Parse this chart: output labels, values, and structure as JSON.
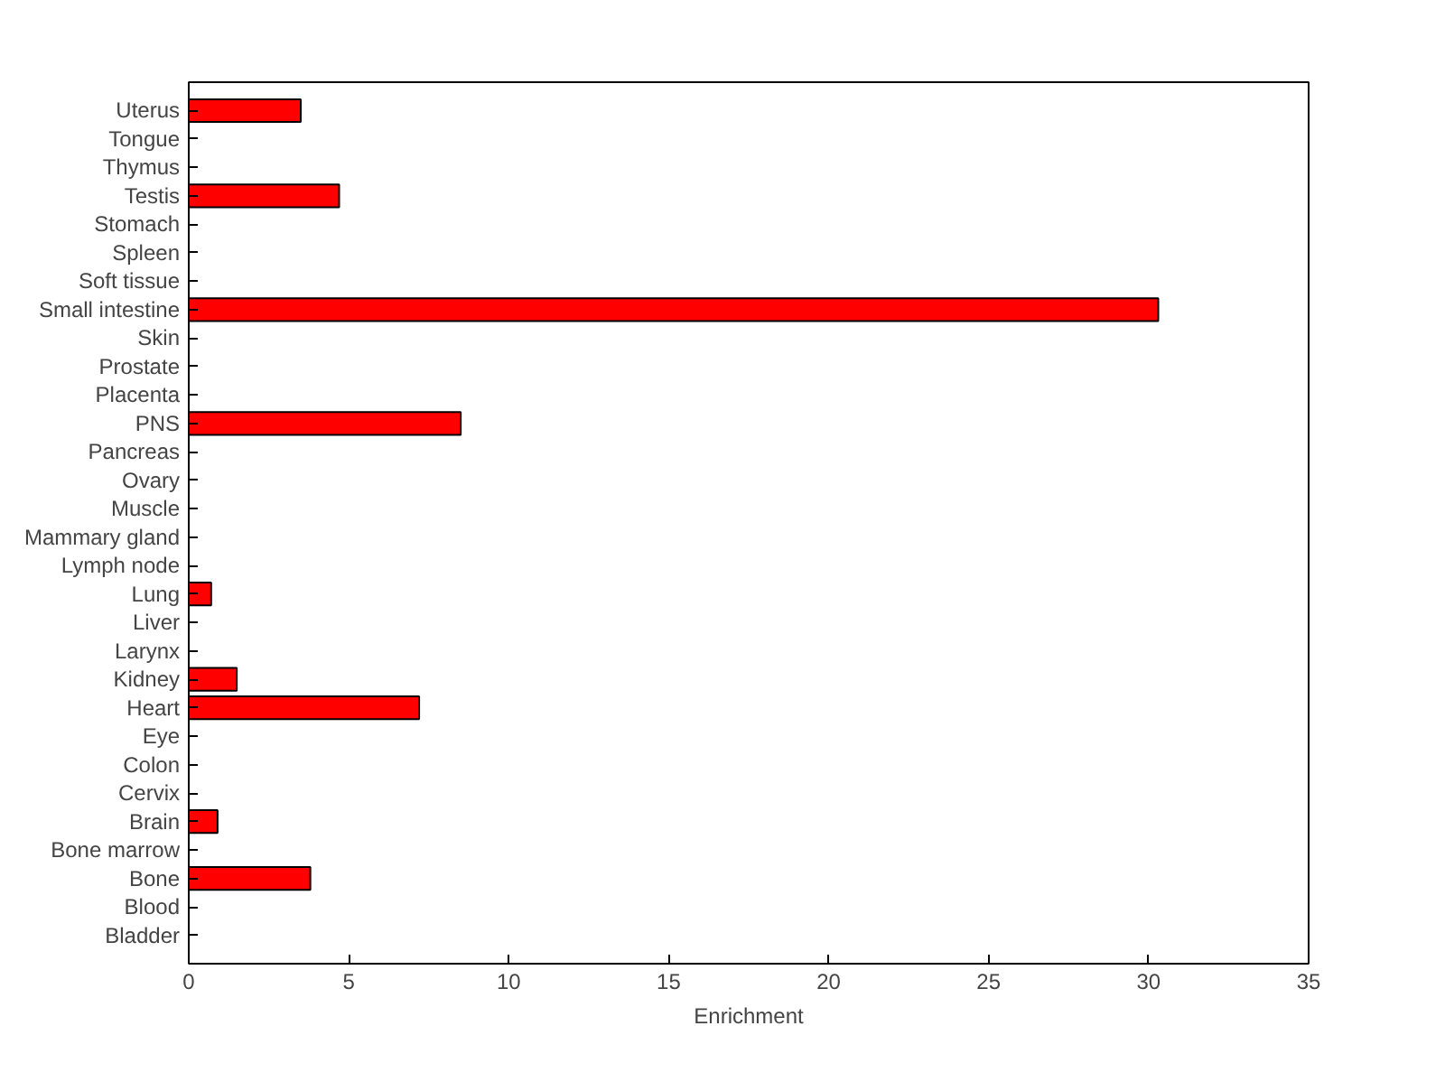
{
  "chart_data": {
    "type": "bar",
    "orientation": "horizontal",
    "xlabel": "Enrichment",
    "categories": [
      "Uterus",
      "Tongue",
      "Thymus",
      "Testis",
      "Stomach",
      "Spleen",
      "Soft tissue",
      "Small intestine",
      "Skin",
      "Prostate",
      "Placenta",
      "PNS",
      "Pancreas",
      "Ovary",
      "Muscle",
      "Mammary gland",
      "Lymph node",
      "Lung",
      "Liver",
      "Larynx",
      "Kidney",
      "Heart",
      "Eye",
      "Colon",
      "Cervix",
      "Brain",
      "Bone marrow",
      "Bone",
      "Blood",
      "Bladder"
    ],
    "values": [
      3.5,
      0,
      0,
      4.7,
      0,
      0,
      0,
      30.3,
      0,
      0,
      0,
      8.5,
      0,
      0,
      0,
      0,
      0,
      0.7,
      0,
      0,
      1.5,
      7.2,
      0,
      0,
      0,
      0.9,
      0,
      3.8,
      0,
      0
    ],
    "color": "#ff0000",
    "xlim": [
      0,
      35
    ],
    "xticks": [
      0,
      5,
      10,
      15,
      20,
      25,
      30,
      35
    ],
    "grid": false
  }
}
